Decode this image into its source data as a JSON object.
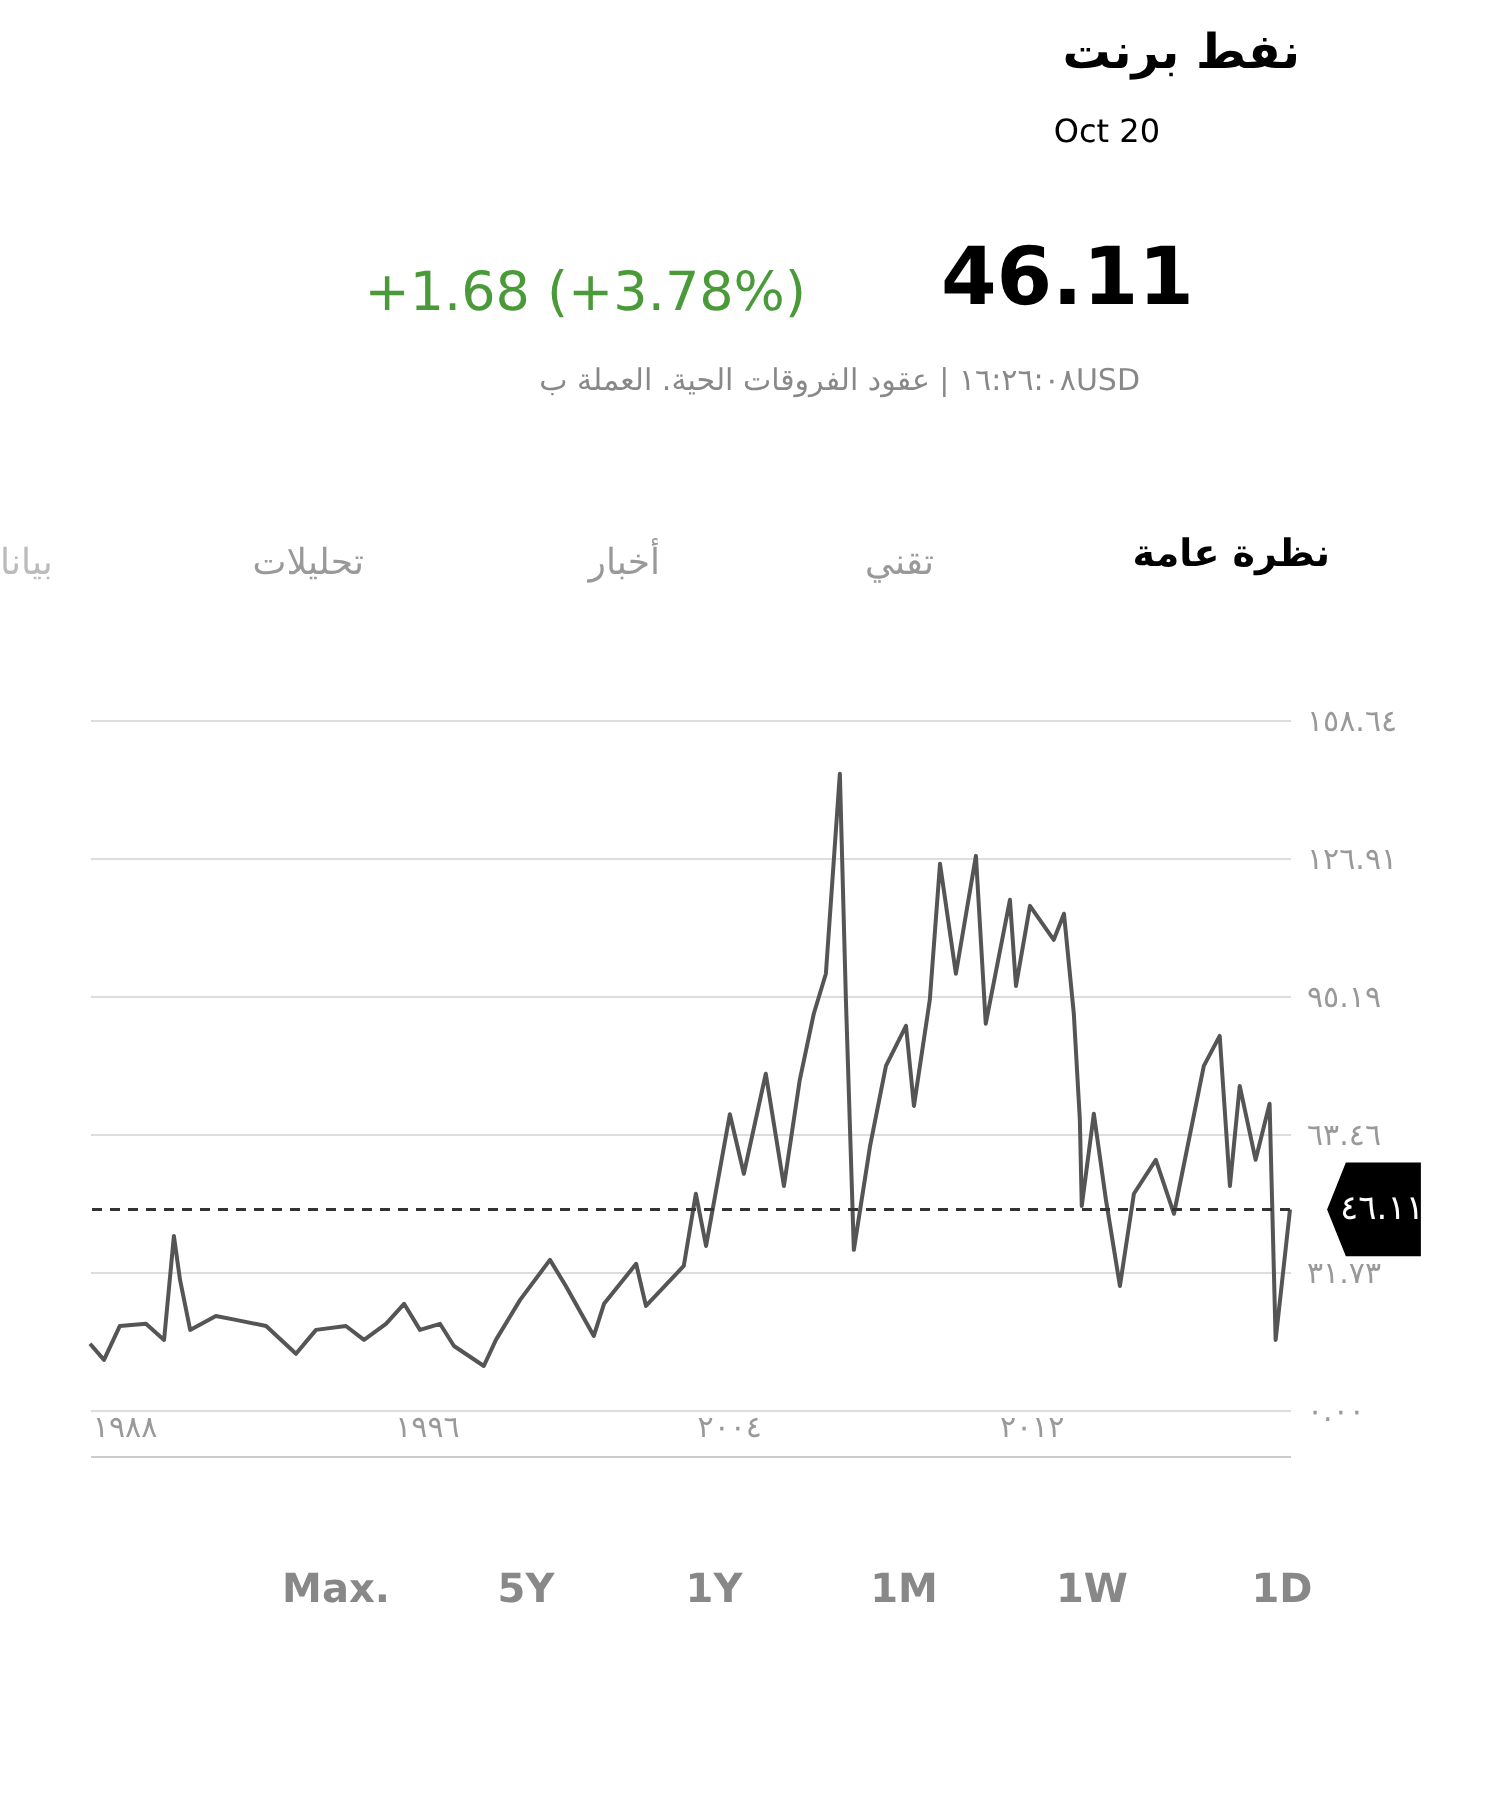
{
  "chart_data": {
    "type": "line",
    "title": "نفط برنت",
    "subtitle": "Oct 20",
    "annotations": [
      "46.11",
      "+1.68 (+3.78%)",
      "١٦:٢٦:٠٨ | عقود الفروقات الحية. العملة بUSD",
      "نظرة عامة",
      "تقني",
      "أخبار",
      "تحليلات",
      "بيانا",
      "Max.",
      "5Y",
      "1Y",
      "1M",
      "1W",
      "1D"
    ],
    "x": [
      1987.1,
      1987.47,
      1987.89,
      1988.58,
      1989.06,
      1989.32,
      1989.48,
      1989.75,
      1990.43,
      1990.96,
      1991.76,
      1992.55,
      1993.08,
      1993.87,
      1994.35,
      1994.93,
      1995.41,
      1995.83,
      1996.36,
      1996.73,
      1997.52,
      1997.84,
      1998.48,
      1999.27,
      1999.69,
      2000.43,
      2000.7,
      2001.55,
      2001.81,
      2002.81,
      2003.13,
      2003.4,
      2004.03,
      2004.4,
      2004.98,
      2005.46,
      2005.88,
      2006.25,
      2006.57,
      2006.94,
      2007.1,
      2007.31,
      2007.74,
      2008.16,
      2008.69,
      2008.9,
      2009.32,
      2009.59,
      2010.01,
      2010.54,
      2010.8,
      2011.44,
      2011.6,
      2011.97,
      2012.6,
      2012.87,
      2013.13,
      2013.29,
      2013.34,
      2013.66,
      2013.98,
      2014.35,
      2014.72,
      2015.3,
      2015.78,
      2016.57,
      2016.99,
      2017.26,
      2017.52,
      2017.94,
      2018.31,
      2018.47,
      2018.85
    ],
    "series": [
      {
        "color": "#555555",
        "values": [
          15.2,
          11.5,
          19.3,
          19.8,
          16.1,
          40,
          30,
          18.4,
          21.6,
          20.7,
          19.3,
          12.9,
          18.4,
          19.3,
          16.1,
          19.8,
          24.4,
          18.4,
          19.8,
          14.7,
          10.1,
          16.1,
          25.3,
          34.5,
          28.5,
          17,
          24.4,
          33.6,
          23.9,
          33.1,
          49.7,
          37.7,
          68,
          54.3,
          77.3,
          51.5,
          75.9,
          91.1,
          100.3,
          146.3,
          94.3,
          36.8,
          60.7,
          79.1,
          88.3,
          69.9,
          94.3,
          125.6,
          100.3,
          127.4,
          88.8,
          117.3,
          97.5,
          115.9,
          108.1,
          114.1,
          91.1,
          66.7,
          46.9,
          68.1,
          48.3,
          28.5,
          49.7,
          57.5,
          45.1,
          79.1,
          86,
          51.5,
          74.5,
          57.5,
          70.4,
          16.1,
          46.1
        ]
      }
    ],
    "xlim": [
      1987.1,
      2018.85
    ],
    "xticks": [
      {
        "value": 1988,
        "label": "١٩٨٨"
      },
      {
        "value": 1996,
        "label": "١٩٩٦"
      },
      {
        "value": 2004,
        "label": "٢٠٠٤"
      },
      {
        "value": 2012,
        "label": "٢٠١٢"
      }
    ],
    "ylim": [
      -10.6,
      158.64
    ],
    "yticks": [
      {
        "value": 0,
        "label": "٠.٠٠"
      },
      {
        "value": 31.73,
        "label": "٣١.٧٣"
      },
      {
        "value": 63.46,
        "label": "٦٣.٤٦"
      },
      {
        "value": 95.19,
        "label": "٩٥.١٩"
      },
      {
        "value": 126.91,
        "label": "١٢٦.٩١"
      },
      {
        "value": 158.64,
        "label": "١٥٨.٦٤"
      }
    ],
    "grid": "y",
    "line_style": "solid",
    "marker": "none",
    "ref_lines": [
      {
        "axis": "y",
        "value": 46.11,
        "label": "٤٦.١١",
        "color": "#333333",
        "line_style": "dashed"
      }
    ]
  }
}
